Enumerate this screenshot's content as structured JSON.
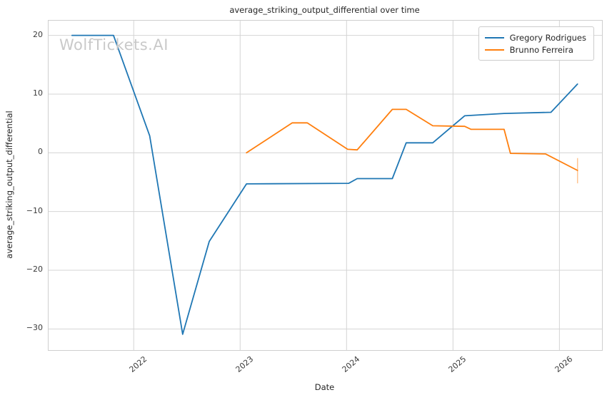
{
  "title": "average_striking_output_differential over time",
  "watermark": "WolfTickets.AI",
  "axes": {
    "xlabel": "Date",
    "ylabel": "average_striking_output_differential"
  },
  "colors": {
    "series1": "#1f77b4",
    "series2": "#ff7f0e",
    "grid": "#d4d4d4",
    "spine": "#cfcfcf",
    "error_bar": "rgba(255,127,14,0.45)"
  },
  "chart_data": {
    "type": "line",
    "title": "average_striking_output_differential over time",
    "xlabel": "Date",
    "ylabel": "average_striking_output_differential",
    "xlim": [
      2021.2,
      2026.4
    ],
    "ylim": [
      -33.6,
      22.5
    ],
    "x_ticks": [
      2022,
      2023,
      2024,
      2025,
      2026
    ],
    "x_tick_labels": [
      "2022",
      "2023",
      "2024",
      "2025",
      "2026"
    ],
    "y_ticks": [
      20,
      10,
      0,
      -10,
      -20,
      -30
    ],
    "y_tick_labels": [
      "20",
      "10",
      "0",
      "−10",
      "−20",
      "−30"
    ],
    "grid": true,
    "legend_position": "upper right",
    "series": [
      {
        "name": "Gregory Rodrigues",
        "color": "#1f77b4",
        "points": [
          [
            2021.42,
            20.0
          ],
          [
            2021.81,
            20.0
          ],
          [
            2022.15,
            2.9
          ],
          [
            2022.46,
            -30.9
          ],
          [
            2022.71,
            -15.1
          ],
          [
            2023.06,
            -5.3
          ],
          [
            2024.02,
            -5.2
          ],
          [
            2024.1,
            -4.4
          ],
          [
            2024.43,
            -4.4
          ],
          [
            2024.56,
            1.7
          ],
          [
            2024.81,
            1.7
          ],
          [
            2025.11,
            6.3
          ],
          [
            2025.48,
            6.7
          ],
          [
            2025.92,
            6.9
          ],
          [
            2026.17,
            11.7
          ]
        ]
      },
      {
        "name": "Brunno Ferreira",
        "color": "#ff7f0e",
        "points": [
          [
            2023.06,
            0.0
          ],
          [
            2023.49,
            5.1
          ],
          [
            2023.63,
            5.1
          ],
          [
            2024.01,
            0.6
          ],
          [
            2024.1,
            0.5
          ],
          [
            2024.43,
            7.4
          ],
          [
            2024.56,
            7.4
          ],
          [
            2024.81,
            4.6
          ],
          [
            2025.11,
            4.5
          ],
          [
            2025.17,
            4.0
          ],
          [
            2025.48,
            4.0
          ],
          [
            2025.54,
            -0.1
          ],
          [
            2025.87,
            -0.2
          ],
          [
            2026.17,
            -3.0
          ]
        ],
        "error_bar": {
          "x": 2026.17,
          "y_low": -5.2,
          "y_high": -0.9
        }
      }
    ]
  }
}
